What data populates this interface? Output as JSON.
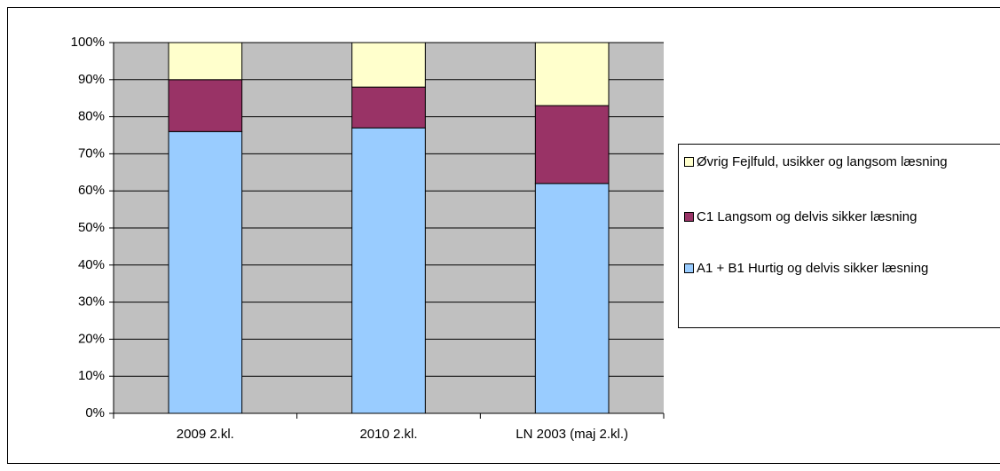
{
  "chart_data": {
    "type": "stacked_bar",
    "categories": [
      "2009 2.kl.",
      "2010 2.kl.",
      "LN 2003 (maj 2.kl.)"
    ],
    "series": [
      {
        "name": "A1 + B1 Hurtig og delvis sikker læsning",
        "color": "#99ccff",
        "values": [
          76,
          77,
          62
        ]
      },
      {
        "name": "C1 Langsom og delvis sikker læsning",
        "color": "#993366",
        "values": [
          14,
          11,
          21
        ]
      },
      {
        "name": "Øvrig Fejlfuld, usikker og langsom læsning",
        "color": "#ffffcc",
        "values": [
          10,
          12,
          17
        ]
      }
    ],
    "ylim": [
      0,
      100
    ],
    "yticks": [
      {
        "value": 0,
        "label": "0%"
      },
      {
        "value": 10,
        "label": "10%"
      },
      {
        "value": 20,
        "label": "20%"
      },
      {
        "value": 30,
        "label": "30%"
      },
      {
        "value": 40,
        "label": "40%"
      },
      {
        "value": 50,
        "label": "50%"
      },
      {
        "value": 60,
        "label": "60%"
      },
      {
        "value": 70,
        "label": "70%"
      },
      {
        "value": 80,
        "label": "80%"
      },
      {
        "value": 90,
        "label": "90%"
      },
      {
        "value": 100,
        "label": "100%"
      }
    ],
    "grid": true,
    "plot_background": "#c0c0c0",
    "legend": "right"
  }
}
